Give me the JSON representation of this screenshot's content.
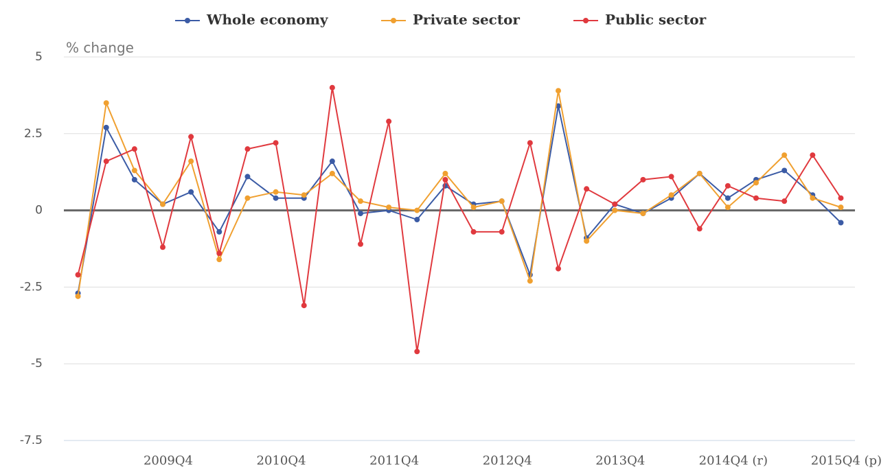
{
  "chart_data": {
    "type": "line",
    "y_label": "% change",
    "categories": [
      null,
      null,
      null,
      "2009Q4",
      null,
      null,
      null,
      "2010Q4",
      null,
      null,
      null,
      "2011Q4",
      null,
      null,
      null,
      "2012Q4",
      null,
      null,
      null,
      "2013Q4",
      null,
      null,
      null,
      "2014Q4 (r)",
      null,
      null,
      null,
      "2015Q4 (p)"
    ],
    "series": [
      {
        "name": "Whole economy",
        "color": "#3b5ba5",
        "values": [
          -2.7,
          2.7,
          1.0,
          0.2,
          0.6,
          -0.7,
          1.1,
          0.4,
          0.4,
          1.6,
          -0.1,
          0.0,
          -0.3,
          0.8,
          0.2,
          0.3,
          -2.1,
          3.4,
          -0.9,
          0.2,
          -0.1,
          0.4,
          1.2,
          0.4,
          1.0,
          1.3,
          0.5,
          -0.4
        ]
      },
      {
        "name": "Private sector",
        "color": "#f0a030",
        "values": [
          -2.8,
          3.5,
          1.3,
          0.2,
          1.6,
          -1.6,
          0.4,
          0.6,
          0.5,
          1.2,
          0.3,
          0.1,
          0.0,
          1.2,
          0.1,
          0.3,
          -2.3,
          3.9,
          -1.0,
          0.0,
          -0.1,
          0.5,
          1.2,
          0.1,
          0.9,
          1.8,
          0.4,
          0.1
        ]
      },
      {
        "name": "Public sector",
        "color": "#e0393e",
        "values": [
          -2.1,
          1.6,
          2.0,
          -1.2,
          2.4,
          -1.4,
          2.0,
          2.2,
          -3.1,
          4.0,
          -1.1,
          2.9,
          -4.6,
          1.0,
          -0.7,
          -0.7,
          2.2,
          -1.9,
          0.7,
          0.2,
          1.0,
          1.1,
          -0.6,
          0.8,
          0.4,
          0.3,
          1.8,
          0.4
        ]
      }
    ],
    "ylim": [
      -7.5,
      5
    ],
    "yticks": [
      -7.5,
      -5,
      -2.5,
      0,
      2.5,
      5
    ],
    "grid": true
  }
}
